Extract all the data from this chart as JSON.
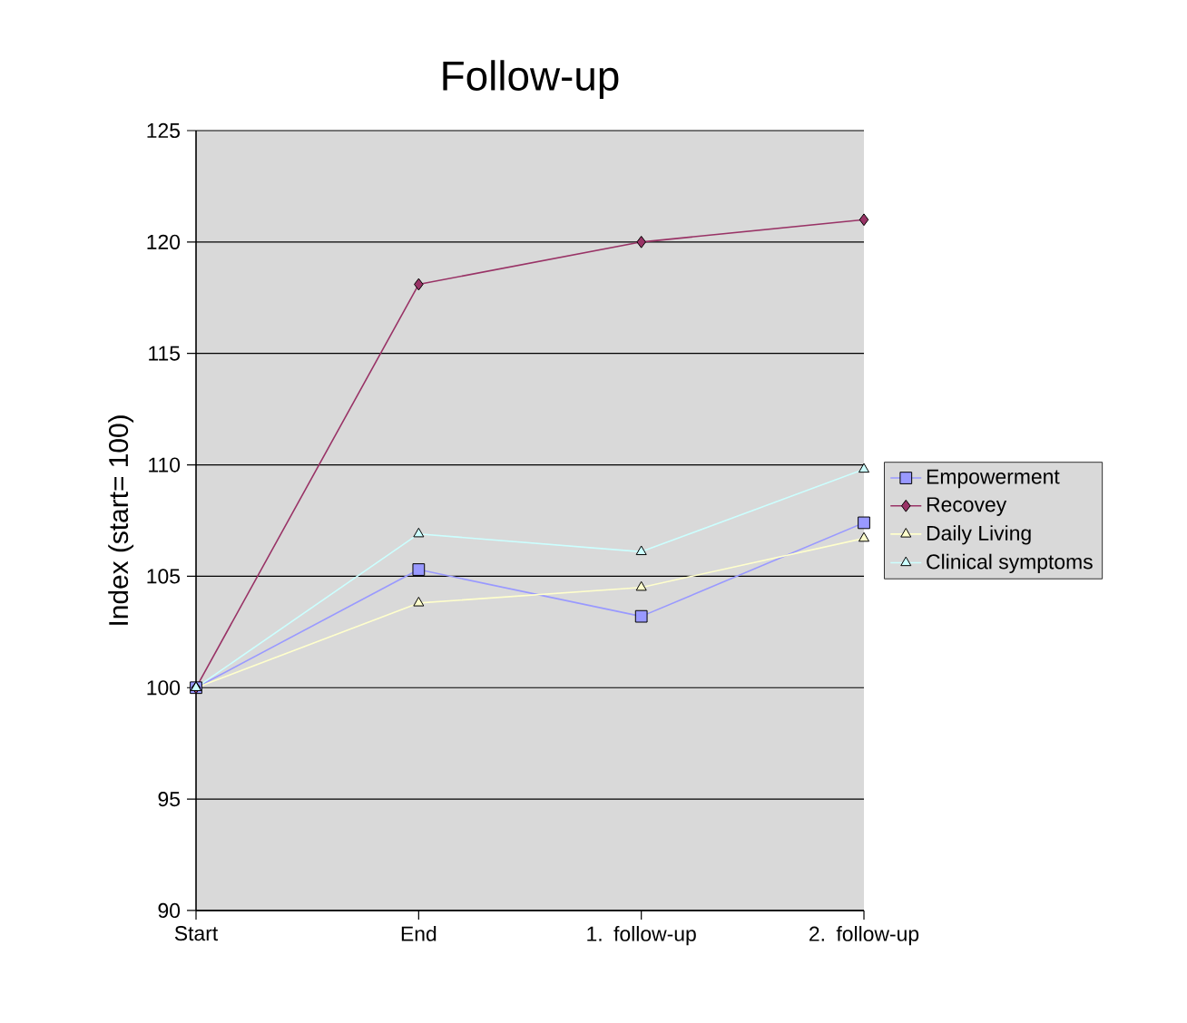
{
  "chart_data": {
    "type": "line",
    "title": "Follow-up",
    "ylabel": "Index (start= 100)",
    "categories": [
      "Start",
      "End",
      "1. follow-up",
      "2. follow-up"
    ],
    "series": [
      {
        "name": "Empowerment",
        "color": "#9999ff",
        "marker": "square",
        "values": [
          100,
          105.3,
          103.2,
          107.4
        ]
      },
      {
        "name": "Recovey",
        "color": "#993366",
        "marker": "diamond",
        "values": [
          100,
          118.1,
          120.0,
          121.0
        ]
      },
      {
        "name": "Daily Living",
        "color": "#ffffcc",
        "marker": "triangle-down",
        "values": [
          100,
          103.8,
          104.5,
          106.7
        ]
      },
      {
        "name": "Clinical symptoms",
        "color": "#ccffff",
        "marker": "triangle",
        "values": [
          100,
          106.9,
          106.1,
          109.8
        ]
      }
    ],
    "ylim": [
      90,
      125
    ],
    "yticks": [
      90,
      95,
      100,
      105,
      110,
      115,
      120,
      125
    ],
    "grid": "y",
    "legend": "right"
  }
}
